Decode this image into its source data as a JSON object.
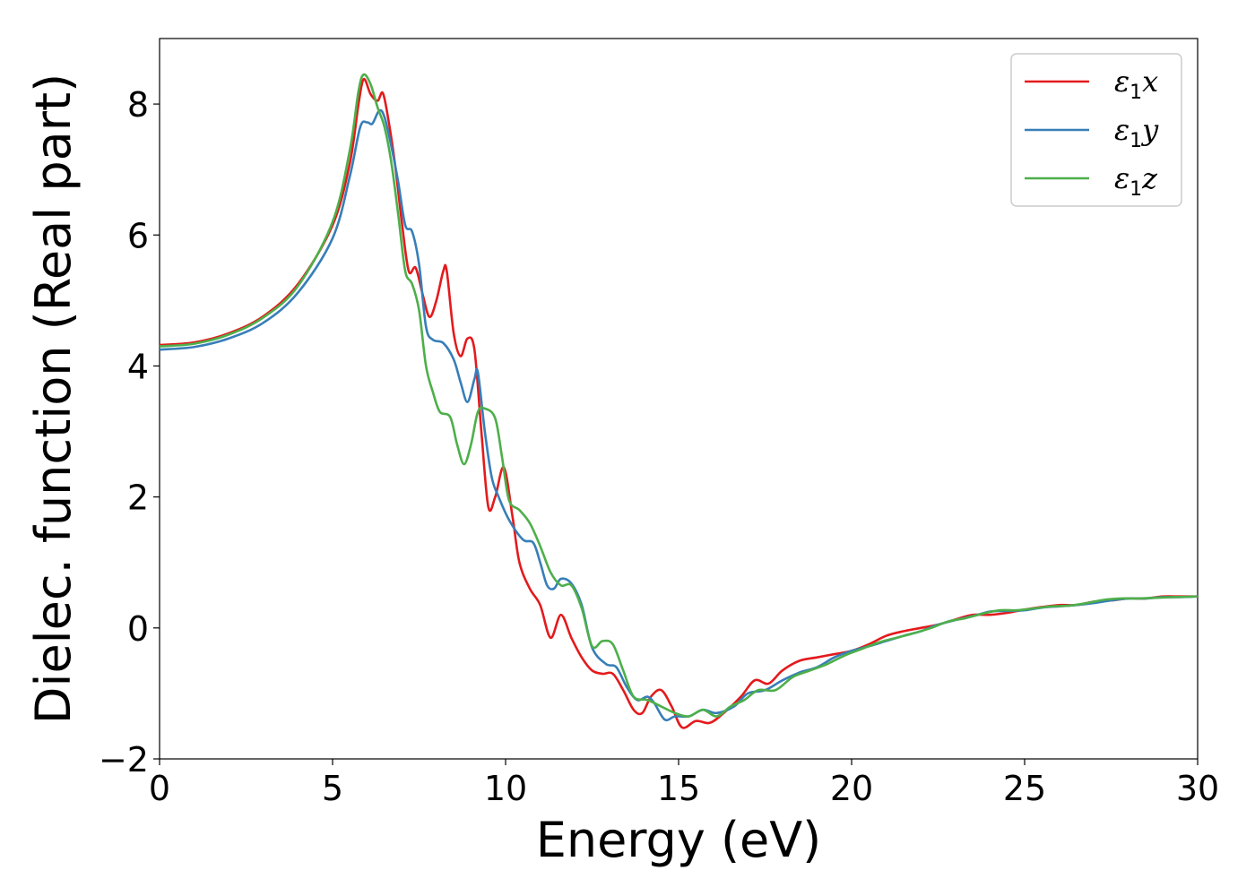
{
  "chart_data": {
    "type": "line",
    "xlabel": "Energy (eV)",
    "ylabel": "Dielec. function (Real part)",
    "xlim": [
      0,
      30
    ],
    "ylim": [
      -2,
      9
    ],
    "xticks": [
      0,
      5,
      10,
      15,
      20,
      25,
      30
    ],
    "xtick_labels": [
      "0",
      "5",
      "10",
      "15",
      "20",
      "25",
      "30"
    ],
    "yticks": [
      -2,
      0,
      2,
      4,
      6,
      8
    ],
    "ytick_labels": [
      "−2",
      "0",
      "2",
      "4",
      "6",
      "8"
    ],
    "grid": false,
    "legend_position": "top-right",
    "series": [
      {
        "name": "ε₁x",
        "name_base": "ε",
        "name_sub": "1",
        "name_tail": "x",
        "color": "#e41a1c",
        "points": [
          [
            0,
            4.32
          ],
          [
            1,
            4.36
          ],
          [
            2,
            4.5
          ],
          [
            3,
            4.76
          ],
          [
            4,
            5.25
          ],
          [
            5,
            6.15
          ],
          [
            5.5,
            7.1
          ],
          [
            5.75,
            8
          ],
          [
            5.9,
            8.38
          ],
          [
            6.1,
            8.15
          ],
          [
            6.3,
            8.05
          ],
          [
            6.45,
            8.17
          ],
          [
            6.6,
            7.8
          ],
          [
            6.8,
            7.1
          ],
          [
            7.0,
            6.2
          ],
          [
            7.2,
            5.45
          ],
          [
            7.4,
            5.5
          ],
          [
            7.6,
            5.1
          ],
          [
            7.8,
            4.75
          ],
          [
            8.0,
            5.0
          ],
          [
            8.2,
            5.45
          ],
          [
            8.3,
            5.45
          ],
          [
            8.5,
            4.5
          ],
          [
            8.7,
            4.15
          ],
          [
            8.9,
            4.42
          ],
          [
            9.1,
            4.25
          ],
          [
            9.3,
            3.0
          ],
          [
            9.5,
            1.85
          ],
          [
            9.7,
            2.0
          ],
          [
            9.95,
            2.45
          ],
          [
            10.2,
            1.7
          ],
          [
            10.4,
            1.0
          ],
          [
            10.7,
            0.6
          ],
          [
            11.0,
            0.35
          ],
          [
            11.3,
            -0.15
          ],
          [
            11.6,
            0.2
          ],
          [
            11.9,
            -0.15
          ],
          [
            12.2,
            -0.45
          ],
          [
            12.5,
            -0.65
          ],
          [
            12.8,
            -0.7
          ],
          [
            13.1,
            -0.7
          ],
          [
            13.4,
            -0.95
          ],
          [
            13.7,
            -1.25
          ],
          [
            13.95,
            -1.3
          ],
          [
            14.2,
            -1.05
          ],
          [
            14.5,
            -0.95
          ],
          [
            14.8,
            -1.2
          ],
          [
            15.1,
            -1.52
          ],
          [
            15.5,
            -1.42
          ],
          [
            15.9,
            -1.45
          ],
          [
            16.3,
            -1.3
          ],
          [
            16.8,
            -1.05
          ],
          [
            17.2,
            -0.8
          ],
          [
            17.6,
            -0.85
          ],
          [
            18.0,
            -0.65
          ],
          [
            18.5,
            -0.5
          ],
          [
            19.0,
            -0.45
          ],
          [
            19.5,
            -0.4
          ],
          [
            20.0,
            -0.35
          ],
          [
            20.5,
            -0.25
          ],
          [
            21.0,
            -0.12
          ],
          [
            21.5,
            -0.05
          ],
          [
            22.0,
            0.0
          ],
          [
            22.5,
            0.05
          ],
          [
            23.0,
            0.13
          ],
          [
            23.5,
            0.2
          ],
          [
            24.0,
            0.2
          ],
          [
            24.5,
            0.23
          ],
          [
            25.0,
            0.28
          ],
          [
            25.5,
            0.32
          ],
          [
            26.0,
            0.35
          ],
          [
            26.5,
            0.35
          ],
          [
            27.0,
            0.4
          ],
          [
            27.5,
            0.42
          ],
          [
            28.0,
            0.45
          ],
          [
            28.5,
            0.45
          ],
          [
            29.0,
            0.48
          ],
          [
            29.5,
            0.48
          ],
          [
            30.0,
            0.48
          ]
        ]
      },
      {
        "name": "ε₁y",
        "name_base": "ε",
        "name_sub": "1",
        "name_tail": "y",
        "color": "#377eb8",
        "points": [
          [
            0,
            4.25
          ],
          [
            1,
            4.29
          ],
          [
            2,
            4.42
          ],
          [
            3,
            4.66
          ],
          [
            4,
            5.12
          ],
          [
            5,
            5.95
          ],
          [
            5.5,
            6.9
          ],
          [
            5.8,
            7.65
          ],
          [
            6.0,
            7.72
          ],
          [
            6.15,
            7.7
          ],
          [
            6.35,
            7.9
          ],
          [
            6.5,
            7.8
          ],
          [
            6.7,
            7.35
          ],
          [
            6.9,
            6.8
          ],
          [
            7.1,
            6.15
          ],
          [
            7.3,
            6.05
          ],
          [
            7.5,
            5.55
          ],
          [
            7.7,
            4.6
          ],
          [
            7.9,
            4.4
          ],
          [
            8.2,
            4.35
          ],
          [
            8.5,
            4.1
          ],
          [
            8.7,
            3.75
          ],
          [
            8.9,
            3.45
          ],
          [
            9.1,
            3.8
          ],
          [
            9.2,
            3.9
          ],
          [
            9.4,
            3.0
          ],
          [
            9.6,
            2.3
          ],
          [
            9.8,
            2.0
          ],
          [
            10.1,
            1.65
          ],
          [
            10.5,
            1.35
          ],
          [
            10.8,
            1.3
          ],
          [
            11.0,
            1.0
          ],
          [
            11.2,
            0.65
          ],
          [
            11.4,
            0.6
          ],
          [
            11.6,
            0.75
          ],
          [
            11.9,
            0.68
          ],
          [
            12.2,
            0.35
          ],
          [
            12.5,
            -0.3
          ],
          [
            12.9,
            -0.55
          ],
          [
            13.2,
            -0.6
          ],
          [
            13.5,
            -0.9
          ],
          [
            13.8,
            -1.1
          ],
          [
            14.1,
            -1.05
          ],
          [
            14.3,
            -1.15
          ],
          [
            14.6,
            -1.4
          ],
          [
            14.9,
            -1.35
          ],
          [
            15.3,
            -1.35
          ],
          [
            15.7,
            -1.25
          ],
          [
            16.1,
            -1.3
          ],
          [
            16.6,
            -1.2
          ],
          [
            17.0,
            -1.0
          ],
          [
            17.5,
            -0.95
          ],
          [
            18.0,
            -0.8
          ],
          [
            18.5,
            -0.68
          ],
          [
            19.0,
            -0.6
          ],
          [
            19.5,
            -0.45
          ],
          [
            20.0,
            -0.35
          ],
          [
            20.5,
            -0.28
          ],
          [
            21.0,
            -0.2
          ],
          [
            21.5,
            -0.12
          ],
          [
            22.0,
            -0.05
          ],
          [
            22.5,
            0.05
          ],
          [
            23.0,
            0.12
          ],
          [
            23.5,
            0.18
          ],
          [
            24.0,
            0.25
          ],
          [
            24.5,
            0.26
          ],
          [
            25.0,
            0.27
          ],
          [
            25.5,
            0.31
          ],
          [
            26.0,
            0.33
          ],
          [
            26.5,
            0.35
          ],
          [
            27.0,
            0.38
          ],
          [
            27.5,
            0.42
          ],
          [
            28.0,
            0.45
          ],
          [
            28.5,
            0.45
          ],
          [
            29.0,
            0.47
          ],
          [
            29.5,
            0.47
          ],
          [
            30.0,
            0.48
          ]
        ]
      },
      {
        "name": "ε₁z",
        "name_base": "ε",
        "name_sub": "1",
        "name_tail": "z",
        "color": "#4daf4a",
        "points": [
          [
            0,
            4.3
          ],
          [
            1,
            4.34
          ],
          [
            2,
            4.48
          ],
          [
            3,
            4.74
          ],
          [
            4,
            5.22
          ],
          [
            5,
            6.2
          ],
          [
            5.5,
            7.3
          ],
          [
            5.75,
            8.2
          ],
          [
            5.9,
            8.45
          ],
          [
            6.1,
            8.3
          ],
          [
            6.3,
            7.95
          ],
          [
            6.5,
            7.65
          ],
          [
            6.7,
            7.1
          ],
          [
            6.9,
            6.3
          ],
          [
            7.1,
            5.45
          ],
          [
            7.3,
            5.25
          ],
          [
            7.5,
            4.85
          ],
          [
            7.7,
            4.0
          ],
          [
            7.9,
            3.6
          ],
          [
            8.1,
            3.3
          ],
          [
            8.4,
            3.22
          ],
          [
            8.6,
            2.8
          ],
          [
            8.8,
            2.5
          ],
          [
            9.0,
            2.8
          ],
          [
            9.2,
            3.3
          ],
          [
            9.4,
            3.35
          ],
          [
            9.7,
            3.2
          ],
          [
            9.9,
            2.6
          ],
          [
            10.1,
            1.95
          ],
          [
            10.4,
            1.8
          ],
          [
            10.7,
            1.6
          ],
          [
            11.0,
            1.25
          ],
          [
            11.3,
            0.85
          ],
          [
            11.6,
            0.65
          ],
          [
            11.9,
            0.65
          ],
          [
            12.2,
            0.3
          ],
          [
            12.5,
            -0.28
          ],
          [
            12.8,
            -0.2
          ],
          [
            13.1,
            -0.25
          ],
          [
            13.4,
            -0.65
          ],
          [
            13.7,
            -1.05
          ],
          [
            14.1,
            -1.1
          ],
          [
            14.5,
            -1.2
          ],
          [
            14.9,
            -1.3
          ],
          [
            15.3,
            -1.35
          ],
          [
            15.7,
            -1.25
          ],
          [
            16.1,
            -1.35
          ],
          [
            16.5,
            -1.2
          ],
          [
            16.9,
            -1.1
          ],
          [
            17.3,
            -0.95
          ],
          [
            17.8,
            -0.95
          ],
          [
            18.3,
            -0.75
          ],
          [
            18.8,
            -0.65
          ],
          [
            19.3,
            -0.55
          ],
          [
            19.8,
            -0.42
          ],
          [
            20.3,
            -0.32
          ],
          [
            20.8,
            -0.22
          ],
          [
            21.3,
            -0.15
          ],
          [
            21.8,
            -0.08
          ],
          [
            22.3,
            0.0
          ],
          [
            22.8,
            0.1
          ],
          [
            23.3,
            0.15
          ],
          [
            23.8,
            0.22
          ],
          [
            24.3,
            0.27
          ],
          [
            24.8,
            0.27
          ],
          [
            25.3,
            0.3
          ],
          [
            25.8,
            0.33
          ],
          [
            26.3,
            0.34
          ],
          [
            26.8,
            0.38
          ],
          [
            27.3,
            0.43
          ],
          [
            27.8,
            0.45
          ],
          [
            28.3,
            0.45
          ],
          [
            28.8,
            0.46
          ],
          [
            29.3,
            0.47
          ],
          [
            30.0,
            0.48
          ]
        ]
      }
    ]
  }
}
